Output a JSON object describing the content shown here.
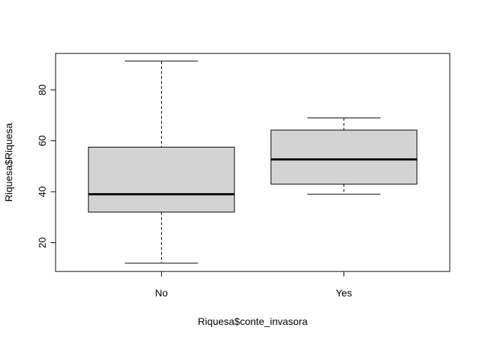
{
  "chart_data": {
    "type": "boxplot",
    "title": "",
    "xlabel": "Riquesa$conte_invasora",
    "ylabel": "Riquesa$Riquesa",
    "ylim": [
      8.7,
      94.3
    ],
    "yticks": [
      20,
      40,
      60,
      80
    ],
    "grid": false,
    "categories": [
      "No",
      "Yes"
    ],
    "boxes": [
      {
        "category": "No",
        "whisker_low": 12,
        "q1": 32,
        "median": 39,
        "q3": 57.5,
        "whisker_high": 91.3
      },
      {
        "category": "Yes",
        "whisker_low": 39,
        "q1": 43,
        "median": 52.7,
        "q3": 64.2,
        "whisker_high": 69
      }
    ],
    "box_fill": "#d3d3d3",
    "line_color": "#000000"
  }
}
